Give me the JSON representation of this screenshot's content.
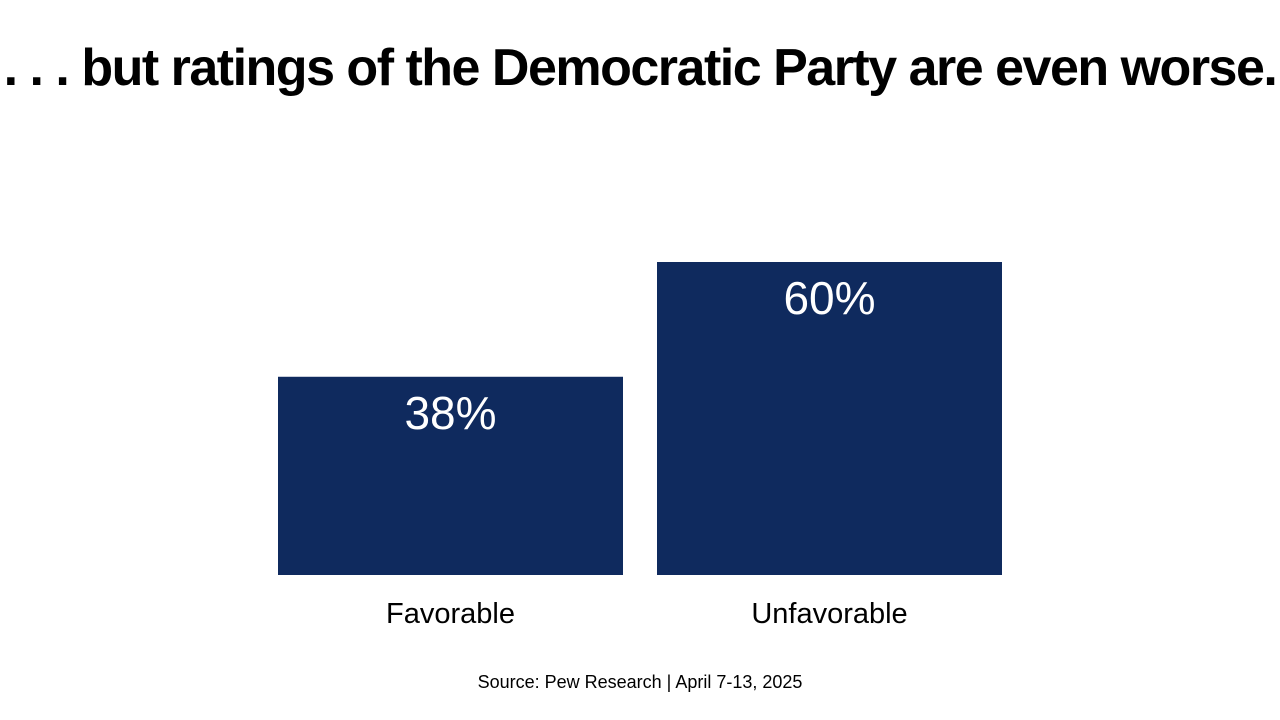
{
  "title": ". . . but ratings of the Democratic Party are even worse.",
  "source": "Source: Pew Research | April 7-13, 2025",
  "colors": {
    "bar": "#0f2a5e",
    "bar_label": "#ffffff",
    "text": "#000000",
    "background": "#ffffff"
  },
  "chart_data": {
    "type": "bar",
    "categories": [
      "Favorable",
      "Unfavorable"
    ],
    "values": [
      38,
      60
    ],
    "value_labels": [
      "38%",
      "60%"
    ],
    "title": ". . . but ratings of the Democratic Party are even worse.",
    "xlabel": "",
    "ylabel": "",
    "grid": false,
    "legend": "none"
  }
}
